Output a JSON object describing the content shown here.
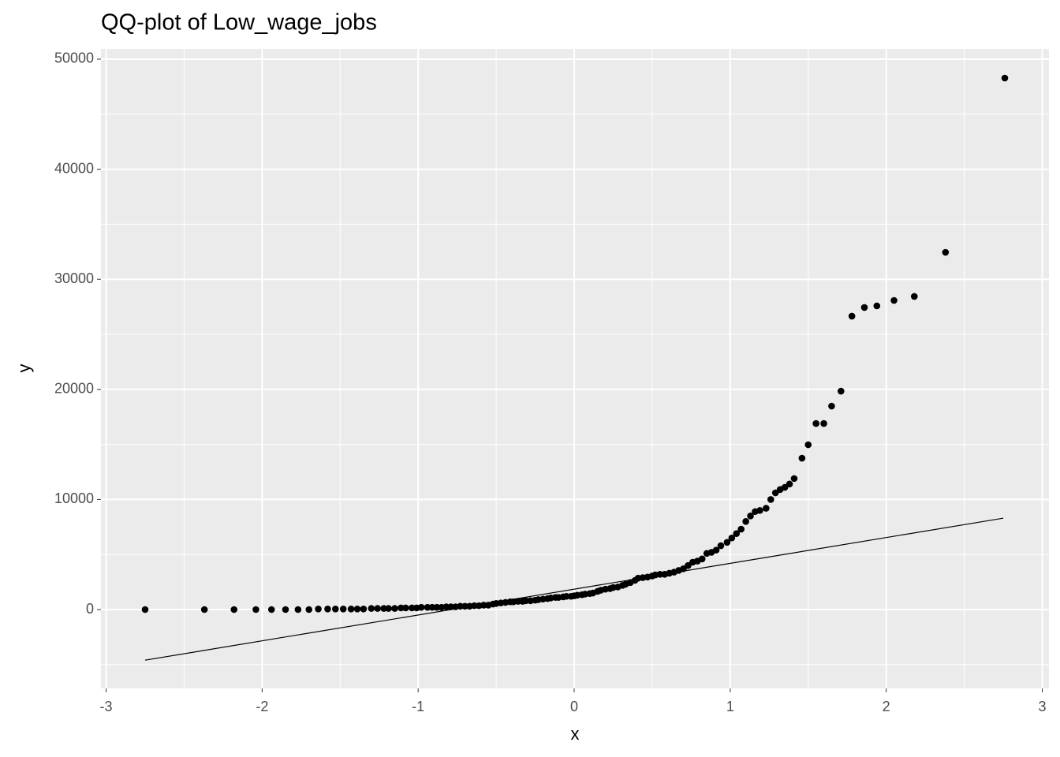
{
  "chart_data": {
    "type": "scatter",
    "title": "QQ-plot of Low_wage_jobs",
    "x_label": "x",
    "y_label": "y",
    "xlim": [
      -3.033,
      3.043
    ],
    "ylim": [
      -7163,
      50930
    ],
    "xticks": [
      -3,
      -2,
      -1,
      0,
      1,
      2,
      3
    ],
    "yticks": [
      0,
      10000,
      20000,
      30000,
      40000,
      50000
    ],
    "x_minor_ticks": [
      -2.5,
      -1.5,
      -0.5,
      0.5,
      1.5,
      2.5
    ],
    "y_minor_ticks": [
      -5000,
      5000,
      15000,
      25000,
      35000,
      45000
    ],
    "grid": true,
    "color": "#000000",
    "x": [
      -2.75,
      -2.37,
      -2.18,
      -2.04,
      -1.94,
      -1.85,
      -1.77,
      -1.7,
      -1.64,
      -1.58,
      -1.53,
      -1.48,
      -1.43,
      -1.39,
      -1.35,
      -1.3,
      -1.26,
      -1.22,
      -1.19,
      -1.15,
      -1.11,
      -1.08,
      -1.04,
      -1.01,
      -0.98,
      -0.94,
      -0.91,
      -0.88,
      -0.85,
      -0.82,
      -0.79,
      -0.76,
      -0.73,
      -0.7,
      -0.67,
      -0.64,
      -0.61,
      -0.58,
      -0.55,
      -0.52,
      -0.5,
      -0.47,
      -0.44,
      -0.41,
      -0.39,
      -0.36,
      -0.33,
      -0.31,
      -0.28,
      -0.25,
      -0.23,
      -0.2,
      -0.17,
      -0.15,
      -0.12,
      -0.1,
      -0.07,
      -0.05,
      -0.02,
      0.0,
      0.02,
      0.05,
      0.07,
      0.1,
      0.12,
      0.15,
      0.17,
      0.2,
      0.23,
      0.25,
      0.28,
      0.31,
      0.33,
      0.36,
      0.39,
      0.41,
      0.44,
      0.47,
      0.5,
      0.52,
      0.55,
      0.58,
      0.61,
      0.64,
      0.67,
      0.7,
      0.73,
      0.76,
      0.79,
      0.82,
      0.85,
      0.88,
      0.91,
      0.94,
      0.98,
      1.01,
      1.04,
      1.07,
      1.1,
      1.13,
      1.16,
      1.19,
      1.23,
      1.26,
      1.29,
      1.32,
      1.35,
      1.38,
      1.41,
      1.46,
      1.5,
      1.55,
      1.6,
      1.65,
      1.71,
      1.78,
      1.86,
      1.94,
      2.05,
      2.18,
      2.38,
      2.76
    ],
    "values": [
      0,
      0,
      0,
      0,
      0,
      0,
      0,
      0,
      50,
      50,
      50,
      50,
      50,
      50,
      50,
      100,
      100,
      100,
      100,
      100,
      150,
      150,
      150,
      150,
      200,
      200,
      200,
      200,
      200,
      250,
      250,
      250,
      300,
      300,
      300,
      350,
      350,
      400,
      400,
      500,
      550,
      600,
      650,
      700,
      700,
      750,
      750,
      800,
      800,
      850,
      900,
      950,
      1000,
      1050,
      1100,
      1100,
      1150,
      1200,
      1200,
      1250,
      1300,
      1350,
      1400,
      1450,
      1500,
      1650,
      1750,
      1850,
      1900,
      2000,
      2050,
      2200,
      2300,
      2450,
      2650,
      2850,
      2900,
      2950,
      3050,
      3150,
      3200,
      3200,
      3300,
      3400,
      3550,
      3700,
      4000,
      4300,
      4400,
      4600,
      5100,
      5200,
      5400,
      5800,
      6100,
      6500,
      6900,
      7300,
      8000,
      8500,
      8900,
      9000,
      9200,
      10000,
      10600,
      10900,
      11100,
      11400,
      11900,
      13750,
      14970,
      16900,
      16900,
      18480,
      19840,
      26650,
      27440,
      27580,
      28080,
      28440,
      32450,
      48280
    ],
    "reference_line": {
      "x": [
        -2.75,
        2.75
      ],
      "values": [
        -4600,
        8300
      ]
    }
  }
}
